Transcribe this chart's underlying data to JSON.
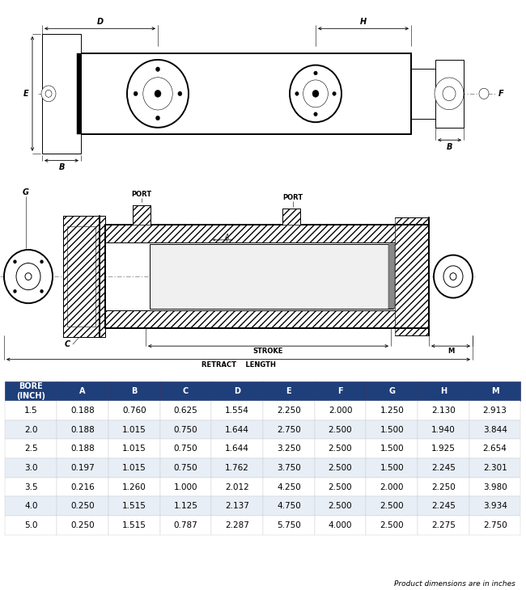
{
  "header_cols": [
    "BORE\n(INCH)",
    "A",
    "B",
    "C",
    "D",
    "E",
    "F",
    "G",
    "H",
    "M"
  ],
  "table_data": [
    [
      "1.5",
      "0.188",
      "0.760",
      "0.625",
      "1.554",
      "2.250",
      "2.000",
      "1.250",
      "2.130",
      "2.913"
    ],
    [
      "2.0",
      "0.188",
      "1.015",
      "0.750",
      "1.644",
      "2.750",
      "2.500",
      "1.500",
      "1.940",
      "3.844"
    ],
    [
      "2.5",
      "0.188",
      "1.015",
      "0.750",
      "1.644",
      "3.250",
      "2.500",
      "1.500",
      "1.925",
      "2.654"
    ],
    [
      "3.0",
      "0.197",
      "1.015",
      "0.750",
      "1.762",
      "3.750",
      "2.500",
      "1.500",
      "2.245",
      "2.301"
    ],
    [
      "3.5",
      "0.216",
      "1.260",
      "1.000",
      "2.012",
      "4.250",
      "2.500",
      "2.000",
      "2.250",
      "3.980"
    ],
    [
      "4.0",
      "0.250",
      "1.515",
      "1.125",
      "2.137",
      "4.750",
      "2.500",
      "2.500",
      "2.245",
      "3.934"
    ],
    [
      "5.0",
      "0.250",
      "1.515",
      "0.787",
      "2.287",
      "5.750",
      "4.000",
      "2.500",
      "2.275",
      "2.750"
    ]
  ],
  "header_bg": "#1e3f7a",
  "header_fg": "#ffffff",
  "row_bg_alt": "#e8eef5",
  "row_bg_norm": "#ffffff",
  "note": "Product dimensions are in inches",
  "bg_color": "#ffffff"
}
